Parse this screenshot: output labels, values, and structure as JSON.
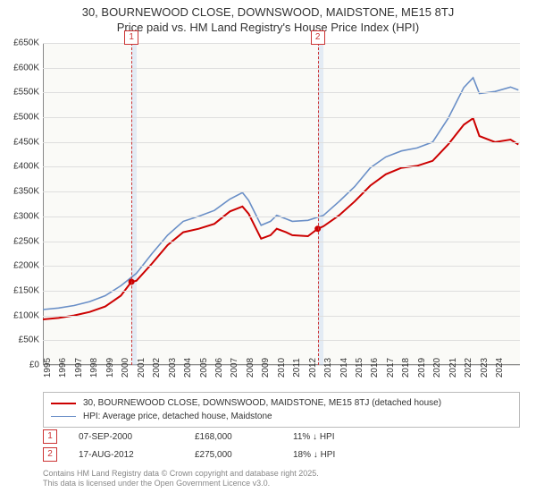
{
  "title_line1": "30, BOURNEWOOD CLOSE, DOWNSWOOD, MAIDSTONE, ME15 8TJ",
  "title_line2": "Price paid vs. HM Land Registry's House Price Index (HPI)",
  "chart": {
    "type": "line",
    "background_color": "#fafaf7",
    "grid_color": "#dedede",
    "axis_color": "#888888",
    "band_color": "#c7d9ef",
    "band_opacity": 0.45,
    "vdash_color": "#cc3333",
    "x_min": 1995,
    "x_max": 2025.6,
    "y_min": 0,
    "y_max": 650000,
    "y_ticks_k": [
      0,
      50,
      100,
      150,
      200,
      250,
      300,
      350,
      400,
      450,
      500,
      550,
      600,
      650
    ],
    "x_ticks": [
      1995,
      1996,
      1997,
      1998,
      1999,
      2000,
      2001,
      2002,
      2003,
      2004,
      2005,
      2006,
      2007,
      2008,
      2009,
      2010,
      2011,
      2012,
      2013,
      2014,
      2015,
      2016,
      2017,
      2018,
      2019,
      2020,
      2021,
      2022,
      2023,
      2024
    ],
    "band_ranges": [
      [
        2000.68,
        2001.0
      ],
      [
        2012.63,
        2013.0
      ]
    ],
    "markers": [
      {
        "n": "1",
        "x": 2000.68,
        "y": 168000
      },
      {
        "n": "2",
        "x": 2012.63,
        "y": 275000
      }
    ],
    "series": [
      {
        "name": "30, BOURNEWOOD CLOSE, DOWNSWOOD, MAIDSTONE, ME15 8TJ (detached house)",
        "color": "#cc0000",
        "width": 2,
        "data": [
          [
            1995,
            92000
          ],
          [
            1996,
            95000
          ],
          [
            1997,
            100000
          ],
          [
            1998,
            107000
          ],
          [
            1999,
            118000
          ],
          [
            2000,
            140000
          ],
          [
            2000.68,
            168000
          ],
          [
            2001,
            170000
          ],
          [
            2002,
            205000
          ],
          [
            2003,
            242000
          ],
          [
            2004,
            268000
          ],
          [
            2005,
            275000
          ],
          [
            2006,
            285000
          ],
          [
            2007,
            310000
          ],
          [
            2007.8,
            320000
          ],
          [
            2008.2,
            305000
          ],
          [
            2009,
            255000
          ],
          [
            2009.6,
            262000
          ],
          [
            2010,
            275000
          ],
          [
            2010.6,
            268000
          ],
          [
            2011,
            262000
          ],
          [
            2012,
            260000
          ],
          [
            2012.63,
            275000
          ],
          [
            2013,
            280000
          ],
          [
            2014,
            302000
          ],
          [
            2015,
            330000
          ],
          [
            2016,
            362000
          ],
          [
            2017,
            385000
          ],
          [
            2018,
            398000
          ],
          [
            2019,
            402000
          ],
          [
            2020,
            412000
          ],
          [
            2021,
            445000
          ],
          [
            2022,
            485000
          ],
          [
            2022.6,
            498000
          ],
          [
            2023,
            462000
          ],
          [
            2024,
            450000
          ],
          [
            2025,
            455000
          ],
          [
            2025.5,
            445000
          ]
        ]
      },
      {
        "name": "HPI: Average price, detached house, Maidstone",
        "color": "#6a8fc7",
        "width": 1.6,
        "data": [
          [
            1995,
            112000
          ],
          [
            1996,
            115000
          ],
          [
            1997,
            120000
          ],
          [
            1998,
            128000
          ],
          [
            1999,
            140000
          ],
          [
            2000,
            160000
          ],
          [
            2001,
            185000
          ],
          [
            2002,
            225000
          ],
          [
            2003,
            262000
          ],
          [
            2004,
            290000
          ],
          [
            2005,
            300000
          ],
          [
            2006,
            312000
          ],
          [
            2007,
            335000
          ],
          [
            2007.8,
            348000
          ],
          [
            2008.2,
            332000
          ],
          [
            2009,
            282000
          ],
          [
            2009.6,
            290000
          ],
          [
            2010,
            302000
          ],
          [
            2010.6,
            295000
          ],
          [
            2011,
            290000
          ],
          [
            2012,
            292000
          ],
          [
            2013,
            302000
          ],
          [
            2014,
            330000
          ],
          [
            2015,
            360000
          ],
          [
            2016,
            398000
          ],
          [
            2017,
            420000
          ],
          [
            2018,
            432000
          ],
          [
            2019,
            438000
          ],
          [
            2020,
            450000
          ],
          [
            2021,
            498000
          ],
          [
            2022,
            560000
          ],
          [
            2022.6,
            580000
          ],
          [
            2023,
            548000
          ],
          [
            2024,
            552000
          ],
          [
            2025,
            561000
          ],
          [
            2025.5,
            555000
          ]
        ]
      }
    ]
  },
  "legend": [
    {
      "color": "#cc0000",
      "width": 2,
      "label": "30, BOURNEWOOD CLOSE, DOWNSWOOD, MAIDSTONE, ME15 8TJ (detached house)"
    },
    {
      "color": "#6a8fc7",
      "width": 1.6,
      "label": "HPI: Average price, detached house, Maidstone"
    }
  ],
  "transactions": [
    {
      "n": "1",
      "date": "07-SEP-2000",
      "price": "£168,000",
      "diff": "11% ↓ HPI"
    },
    {
      "n": "2",
      "date": "17-AUG-2012",
      "price": "£275,000",
      "diff": "18% ↓ HPI"
    }
  ],
  "credit_line1": "Contains HM Land Registry data © Crown copyright and database right 2025.",
  "credit_line2": "This data is licensed under the Open Government Licence v3.0."
}
